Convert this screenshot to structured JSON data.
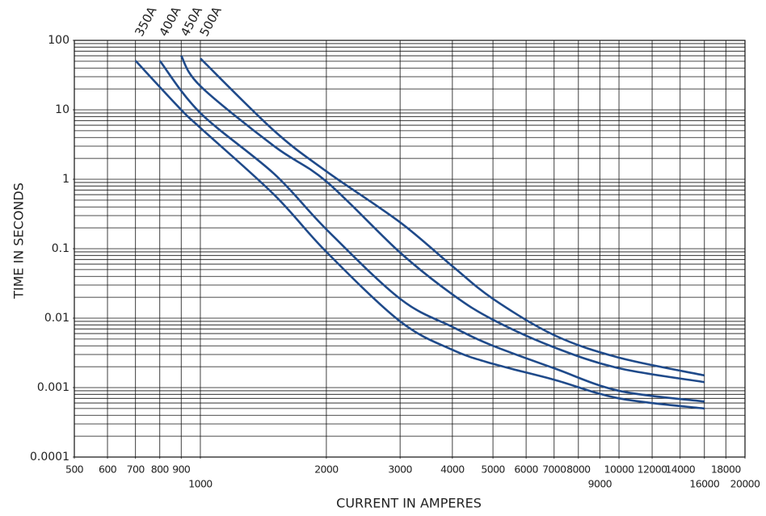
{
  "chart_data": {
    "type": "line",
    "x_label": "CURRENT IN AMPERES",
    "y_label": "TIME IN SECONDS",
    "xscale": "log",
    "yscale": "log",
    "grid": true,
    "xlim": [
      500,
      20000
    ],
    "ylim": [
      0.0001,
      100
    ],
    "xticks": [
      500,
      600,
      700,
      800,
      900,
      1000,
      2000,
      3000,
      4000,
      5000,
      6000,
      7000,
      8000,
      9000,
      10000,
      12000,
      14000,
      16000,
      18000,
      20000
    ],
    "yticks": [
      0.0001,
      0.001,
      0.01,
      0.1,
      1,
      10,
      100
    ],
    "series": [
      {
        "name": "350A",
        "color": "#1f4a8a",
        "x": [
          700,
          900,
          1000,
          1500,
          2000,
          3000,
          4000,
          5000,
          7000,
          10000,
          16000
        ],
        "values": [
          51,
          10,
          5.5,
          0.6,
          0.09,
          0.009,
          0.0035,
          0.0022,
          0.0013,
          0.0007,
          0.0005
        ]
      },
      {
        "name": "400A",
        "color": "#1f4a8a",
        "x": [
          800,
          1000,
          1500,
          2000,
          3000,
          4000,
          5000,
          7000,
          10000,
          16000
        ],
        "values": [
          51,
          9,
          1.2,
          0.19,
          0.019,
          0.0075,
          0.004,
          0.0019,
          0.0009,
          0.00063
        ]
      },
      {
        "name": "450A",
        "color": "#1f4a8a",
        "x": [
          900,
          1000,
          1500,
          2000,
          3000,
          4000,
          5000,
          7000,
          10000,
          16000
        ],
        "values": [
          60,
          22,
          3,
          0.93,
          0.088,
          0.022,
          0.0095,
          0.0038,
          0.0019,
          0.0012
        ]
      },
      {
        "name": "500A",
        "color": "#1f4a8a",
        "x": [
          1000,
          1500,
          2000,
          3000,
          4000,
          5000,
          7000,
          10000,
          16000
        ],
        "values": [
          55,
          5,
          1.3,
          0.24,
          0.056,
          0.019,
          0.0057,
          0.0027,
          0.0015
        ]
      }
    ]
  }
}
